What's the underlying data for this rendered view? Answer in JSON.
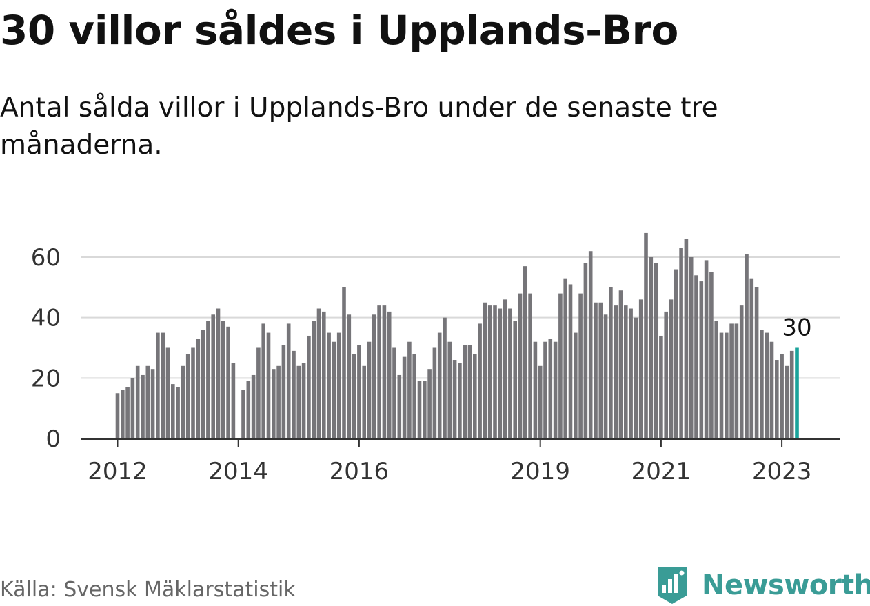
{
  "title": "30 villor såldes i Upplands-Bro",
  "subtitle": "Antal sålda villor i Upplands-Bro under de senaste tre månaderna.",
  "source": "Källa: Svensk Mäklarstatistik",
  "brand": "Newsworthy",
  "colors": {
    "bar": "#767579",
    "highlight": "#1aa39b",
    "grid": "#d9d9d9",
    "axis": "#333333",
    "brand": "#3a9c96"
  },
  "chart_data": {
    "type": "bar",
    "ylim": [
      0,
      70
    ],
    "yticks": [
      0,
      20,
      40,
      60
    ],
    "start": "2012-01",
    "xtick_labels": [
      {
        "label": "2012",
        "index": 0
      },
      {
        "label": "2014",
        "index": 24
      },
      {
        "label": "2016",
        "index": 48
      },
      {
        "label": "2019",
        "index": 84
      },
      {
        "label": "2021",
        "index": 108
      },
      {
        "label": "2023",
        "index": 132
      }
    ],
    "values": [
      15,
      16,
      17,
      20,
      24,
      21,
      24,
      23,
      35,
      35,
      30,
      18,
      17,
      24,
      28,
      30,
      33,
      36,
      39,
      41,
      43,
      39,
      37,
      25,
      0,
      16,
      19,
      21,
      30,
      38,
      35,
      23,
      24,
      31,
      38,
      29,
      24,
      25,
      34,
      39,
      43,
      42,
      35,
      32,
      35,
      50,
      41,
      28,
      31,
      24,
      32,
      41,
      44,
      44,
      42,
      30,
      21,
      27,
      32,
      28,
      19,
      19,
      23,
      30,
      35,
      40,
      32,
      26,
      25,
      31,
      31,
      28,
      38,
      45,
      44,
      44,
      43,
      46,
      43,
      39,
      48,
      57,
      48,
      32,
      24,
      32,
      33,
      32,
      48,
      53,
      51,
      35,
      48,
      58,
      62,
      45,
      45,
      41,
      50,
      44,
      49,
      44,
      43,
      40,
      46,
      68,
      60,
      58,
      34,
      42,
      46,
      56,
      63,
      66,
      60,
      54,
      52,
      59,
      55,
      39,
      35,
      35,
      38,
      38,
      44,
      61,
      53,
      50,
      36,
      35,
      32,
      26,
      28,
      24,
      29,
      30
    ],
    "highlight_index": 135,
    "highlight_label": "30"
  }
}
